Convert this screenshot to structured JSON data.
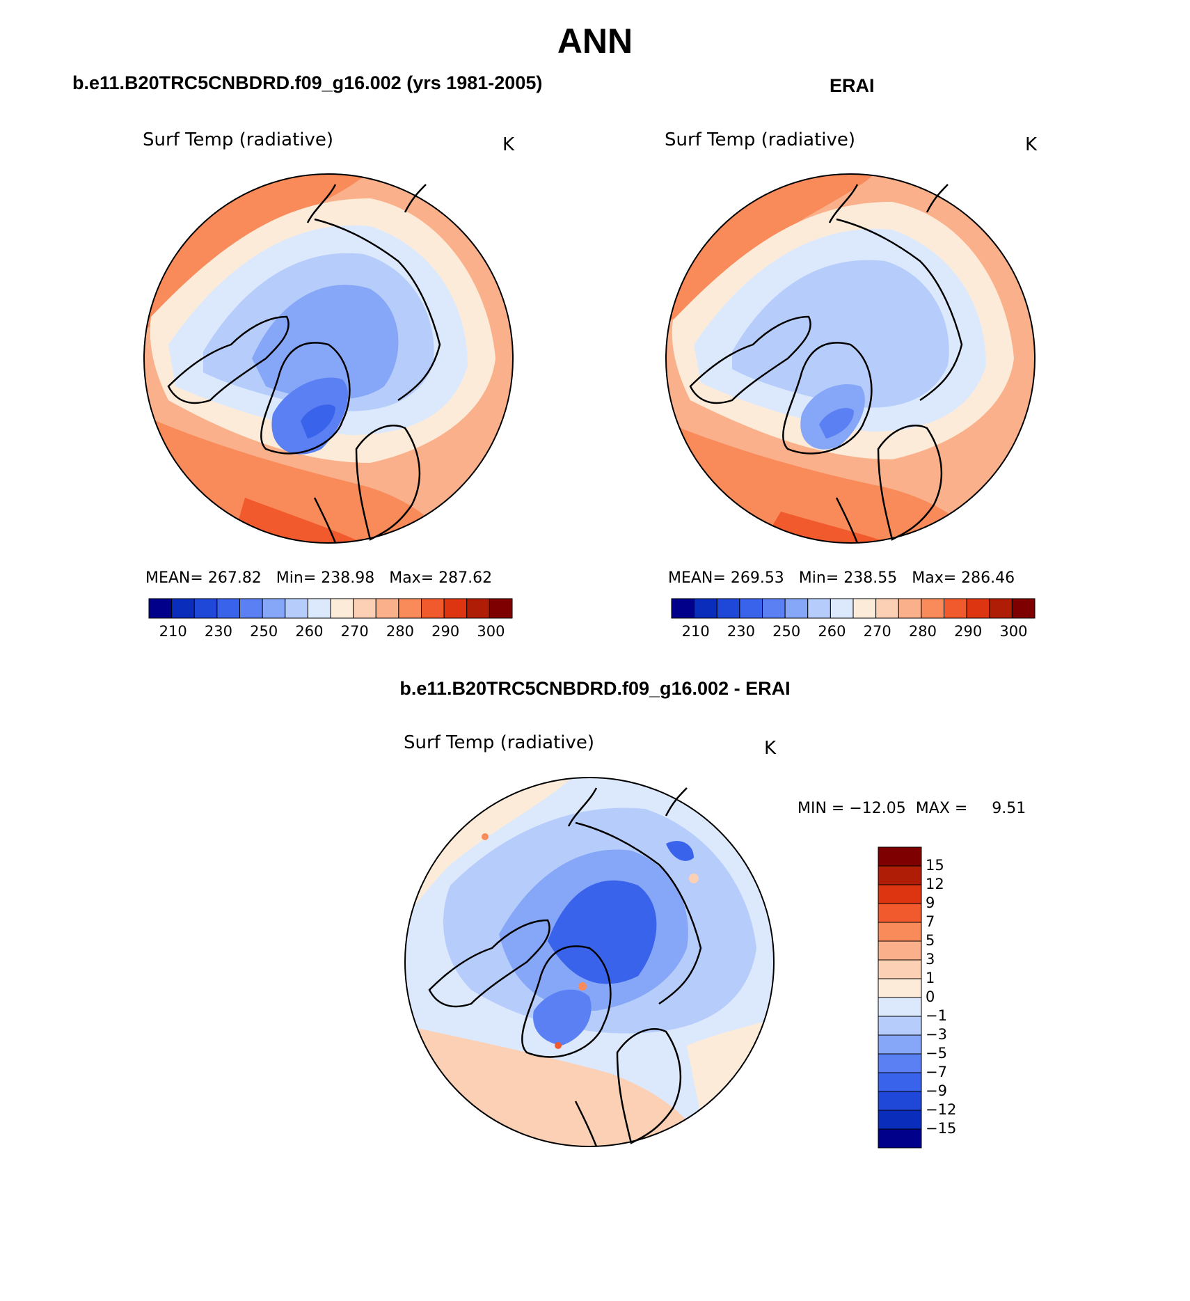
{
  "title": "ANN",
  "colors": {
    "scale": [
      "#00008b",
      "#0a2dbc",
      "#1f48d8",
      "#3a63ec",
      "#5a80f3",
      "#86a6f7",
      "#b6cdfb",
      "#dce9fd",
      "#fdebd9",
      "#fcd0b4",
      "#fab08a",
      "#f98a5a",
      "#f05a2c",
      "#dd3512",
      "#b01d06",
      "#7f0000"
    ],
    "coast": "#000000"
  },
  "panels": [
    {
      "heading": "b.e11.B20TRC5CNBDRD.f09_g16.002 (yrs 1981-2005)",
      "variable": "Surf Temp (radiative)",
      "units": "K",
      "stats": {
        "mean_label": "MEAN=",
        "mean": "267.82",
        "min_label": "Min=",
        "min": "238.98",
        "max_label": "Max=",
        "max": "287.62"
      },
      "colorbar_labels": [
        "210",
        "230",
        "250",
        "260",
        "270",
        "280",
        "290",
        "300"
      ],
      "colorbar_levels": [
        210,
        220,
        230,
        240,
        250,
        255,
        260,
        265,
        270,
        275,
        280,
        285,
        290,
        295,
        300
      ]
    },
    {
      "heading": "ERAI",
      "variable": "Surf Temp (radiative)",
      "units": "K",
      "stats": {
        "mean_label": "MEAN=",
        "mean": "269.53",
        "min_label": "Min=",
        "min": "238.55",
        "max_label": "Max=",
        "max": "286.46"
      },
      "colorbar_labels": [
        "210",
        "230",
        "250",
        "260",
        "270",
        "280",
        "290",
        "300"
      ],
      "colorbar_levels": [
        210,
        220,
        230,
        240,
        250,
        255,
        260,
        265,
        270,
        275,
        280,
        285,
        290,
        295,
        300
      ]
    },
    {
      "heading": "b.e11.B20TRC5CNBDRD.f09_g16.002 - ERAI",
      "variable": "Surf Temp (radiative)",
      "units": "K",
      "stats": {
        "min_label": "MIN =",
        "min": "−12.05",
        "max_label": "MAX =",
        "max": "9.51"
      },
      "colorbar_labels": [
        "15",
        "12",
        "9",
        "7",
        "5",
        "3",
        "1",
        "0",
        "−1",
        "−3",
        "−5",
        "−7",
        "−9",
        "−12",
        "−15"
      ],
      "colorbar_levels": [
        15,
        12,
        9,
        7,
        5,
        3,
        1,
        0,
        -1,
        -3,
        -5,
        -7,
        -9,
        -12,
        -15
      ]
    }
  ]
}
